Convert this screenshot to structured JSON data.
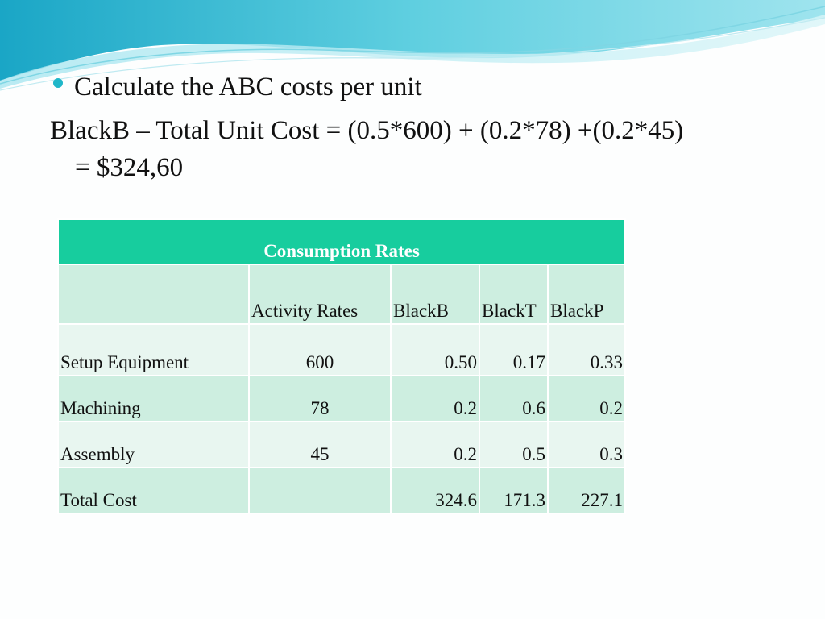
{
  "slide": {
    "bullet_text": "Calculate the ABC costs per unit",
    "formula_line1": "BlackB – Total Unit Cost = (0.5*600) + (0.2*78) +(0.2*45)",
    "formula_line2": "= $324,60"
  },
  "colors": {
    "header_band": "#17cd9e",
    "row_dark": "#cdeee0",
    "row_light": "#e8f6f0",
    "bullet": "#1fb7c9",
    "wave": "#3fbfd6"
  },
  "table": {
    "title": "Consumption Rates",
    "headers": [
      "",
      "Activity Rates",
      "BlackB",
      "BlackT",
      "BlackP"
    ],
    "rows": [
      {
        "label": "Setup Equipment",
        "rate": "600",
        "b": "0.50",
        "t": "0.17",
        "p": "0.33"
      },
      {
        "label": "Machining",
        "rate": "78",
        "b": "0.2",
        "t": "0.6",
        "p": "0.2"
      },
      {
        "label": "Assembly",
        "rate": "45",
        "b": "0.2",
        "t": "0.5",
        "p": "0.3"
      },
      {
        "label": "Total Cost",
        "rate": "",
        "b": "324.6",
        "t": "171.3",
        "p": "227.1"
      }
    ]
  }
}
